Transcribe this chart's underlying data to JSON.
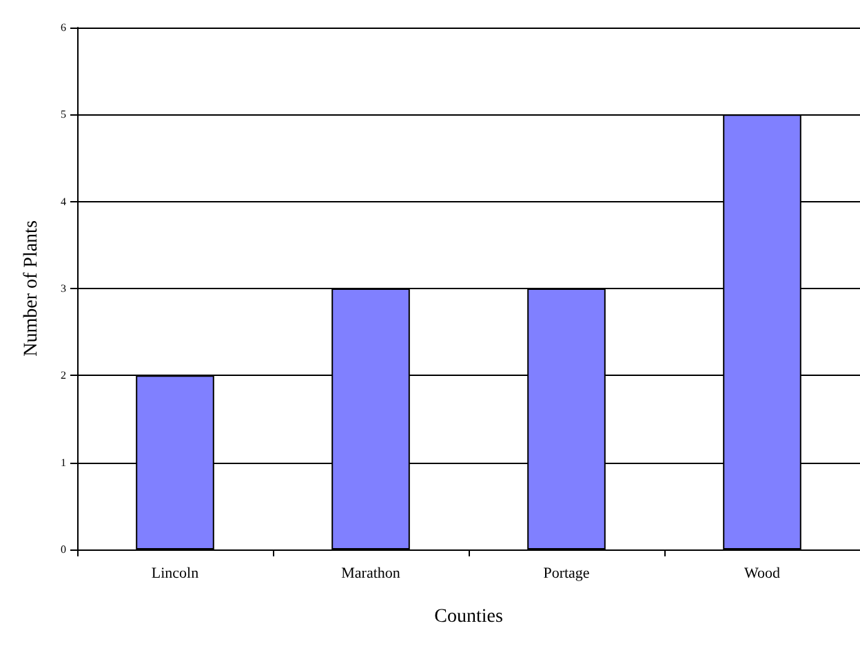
{
  "chart_data": {
    "type": "bar",
    "xlabel": "Counties",
    "ylabel": "Number of Plants",
    "categories": [
      "Lincoln",
      "Marathon",
      "Portage",
      "Wood"
    ],
    "values": [
      2,
      3,
      3,
      5
    ],
    "color": "#8080ff",
    "ylim": [
      0,
      6
    ],
    "yticks": [
      0,
      1,
      2,
      3,
      4,
      5,
      6
    ],
    "grid": "y"
  }
}
